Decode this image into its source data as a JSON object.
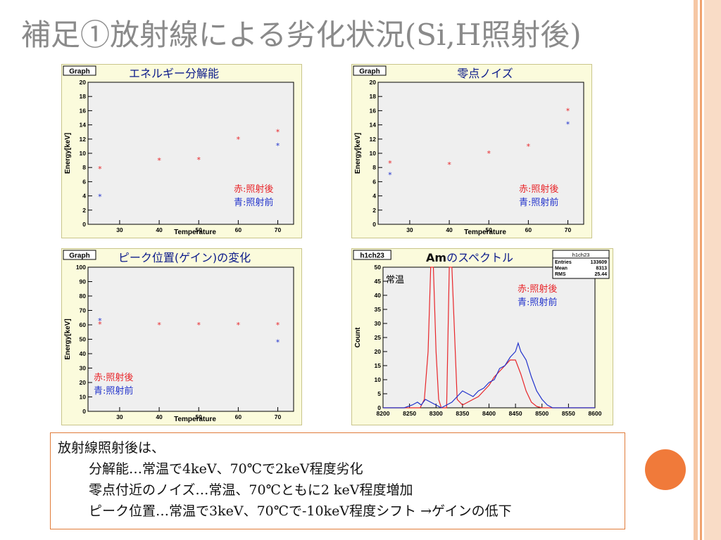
{
  "slide": {
    "title": "補足①放射線による劣化状況(Si,H照射後)",
    "summary": [
      "放射線照射後は、",
      "分解能…常温で4keV、70℃で2keV程度劣化",
      "零点付近のノイズ…常温、70℃ともに2 keV程度増加",
      "ピーク位置…常温で3keV、70℃で-10keV程度シフト →ゲインの低下"
    ],
    "colors": {
      "red": "#e8262a",
      "blue": "#2233cc",
      "orange": "#f07a3a",
      "frame_bg": "#fbfbdc",
      "plot_bg": "#efefef"
    }
  },
  "chart_data": [
    {
      "type": "scatter",
      "frame_label": "Graph",
      "title": "エネルギー分解能",
      "xlabel": "Temperature",
      "ylabel": "Energy[keV]",
      "xlim": [
        22,
        74
      ],
      "ylim": [
        0,
        20
      ],
      "xticks": [
        30,
        40,
        50,
        60,
        70
      ],
      "yticks": [
        0,
        2,
        4,
        6,
        8,
        10,
        12,
        14,
        16,
        18,
        20
      ],
      "series": [
        {
          "name": "赤:照射後",
          "color": "#e8262a",
          "points": [
            [
              25,
              7.8
            ],
            [
              40,
              9.0
            ],
            [
              50,
              9.1
            ],
            [
              60,
              12.0
            ],
            [
              70,
              13.0
            ]
          ]
        },
        {
          "name": "青:照射前",
          "color": "#2233cc",
          "points": [
            [
              25,
              3.9
            ],
            [
              70,
              11.1
            ]
          ]
        }
      ]
    },
    {
      "type": "scatter",
      "frame_label": "Graph",
      "title": "零点ノイズ",
      "xlabel": "Temperature",
      "ylabel": "Energy[keV]",
      "xlim": [
        22,
        74
      ],
      "ylim": [
        0,
        20
      ],
      "xticks": [
        30,
        40,
        50,
        60,
        70
      ],
      "yticks": [
        0,
        2,
        4,
        6,
        8,
        10,
        12,
        14,
        16,
        18,
        20
      ],
      "series": [
        {
          "name": "赤:照射後",
          "color": "#e8262a",
          "points": [
            [
              25,
              8.6
            ],
            [
              40,
              8.4
            ],
            [
              50,
              10.0
            ],
            [
              60,
              11.0
            ],
            [
              70,
              16.0
            ]
          ]
        },
        {
          "name": "青:照射前",
          "color": "#2233cc",
          "points": [
            [
              25,
              7.0
            ],
            [
              70,
              14.1
            ]
          ]
        }
      ]
    },
    {
      "type": "scatter",
      "frame_label": "Graph",
      "title": "ピーク位置(ゲイン)の変化",
      "xlabel": "Temperature",
      "ylabel": "Energy[keV]",
      "xlim": [
        22,
        74
      ],
      "ylim": [
        0,
        100
      ],
      "xticks": [
        30,
        40,
        50,
        60,
        70
      ],
      "yticks": [
        0,
        10,
        20,
        30,
        40,
        50,
        60,
        70,
        80,
        90,
        100
      ],
      "series": [
        {
          "name": "赤:照射後",
          "color": "#e8262a",
          "points": [
            [
              25,
              60.5
            ],
            [
              40,
              60
            ],
            [
              50,
              60
            ],
            [
              60,
              60
            ],
            [
              70,
              60
            ]
          ]
        },
        {
          "name": "青:照射前",
          "color": "#2233cc",
          "points": [
            [
              25,
              63
            ],
            [
              70,
              48
            ]
          ]
        }
      ]
    },
    {
      "type": "line",
      "frame_label": "h1ch23",
      "title": "Amのスペクトル",
      "annotation": "常温",
      "xlabel": "",
      "ylabel": "Count",
      "xlim": [
        8200,
        8600
      ],
      "ylim": [
        0,
        50
      ],
      "xticks": [
        8200,
        8250,
        8300,
        8350,
        8400,
        8450,
        8500,
        8550,
        8600
      ],
      "yticks": [
        0,
        5,
        10,
        15,
        20,
        25,
        30,
        35,
        40,
        45,
        50
      ],
      "stats": {
        "name": "h1ch23",
        "rows": [
          [
            "Entries",
            "133609"
          ],
          [
            "Mean",
            "8313"
          ],
          [
            "RMS",
            "25.44"
          ]
        ]
      },
      "series": [
        {
          "name": "赤:照射後",
          "color": "#e8262a",
          "x": [
            8200,
            8260,
            8270,
            8278,
            8285,
            8290,
            8295,
            8300,
            8305,
            8310,
            8315,
            8320,
            8325,
            8330,
            8340,
            8350,
            8360,
            8370,
            8380,
            8390,
            8400,
            8410,
            8420,
            8430,
            8440,
            8450,
            8460,
            8470,
            8480,
            8490,
            8500,
            8600
          ],
          "y": [
            0,
            0,
            0,
            3,
            20,
            50,
            50,
            20,
            3,
            0,
            0,
            0,
            50,
            50,
            3,
            1,
            2,
            3,
            4,
            6,
            8,
            11,
            13,
            15,
            17,
            17,
            12,
            6,
            2,
            0.5,
            0,
            0
          ]
        },
        {
          "name": "青:照射前",
          "color": "#2233cc",
          "x": [
            8200,
            8240,
            8255,
            8265,
            8272,
            8280,
            8290,
            8300,
            8310,
            8320,
            8330,
            8340,
            8350,
            8360,
            8370,
            8380,
            8390,
            8400,
            8410,
            8420,
            8430,
            8440,
            8450,
            8455,
            8460,
            8470,
            8480,
            8490,
            8500,
            8510,
            8520,
            8600
          ],
          "y": [
            0,
            0,
            1,
            2,
            1,
            3,
            2,
            1,
            0,
            1,
            2,
            4,
            6,
            5,
            4,
            6,
            7,
            9,
            10,
            14,
            15,
            18,
            20,
            23,
            20,
            17,
            11,
            6,
            3,
            1,
            0,
            0
          ]
        }
      ]
    }
  ]
}
